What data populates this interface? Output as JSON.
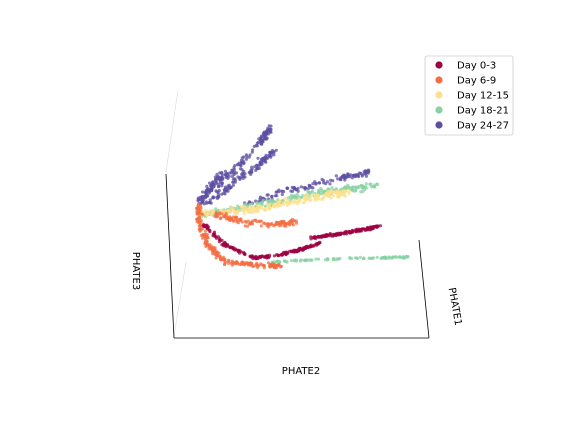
{
  "chart_data": {
    "type": "scatter",
    "projection": "3d",
    "title": "",
    "xlabel": "PHATE1",
    "ylabel": "PHATE2",
    "zlabel": "PHATE3",
    "grid": false,
    "ticks": false,
    "legend_position": "top-right",
    "series": [
      {
        "name": "Day 0-3",
        "color": "#9e0142"
      },
      {
        "name": "Day 6-9",
        "color": "#f46d43"
      },
      {
        "name": "Day 12-15",
        "color": "#fee08b"
      },
      {
        "name": "Day 18-21",
        "color": "#88d1a4"
      },
      {
        "name": "Day 24-27",
        "color": "#5e4fa2"
      }
    ]
  }
}
